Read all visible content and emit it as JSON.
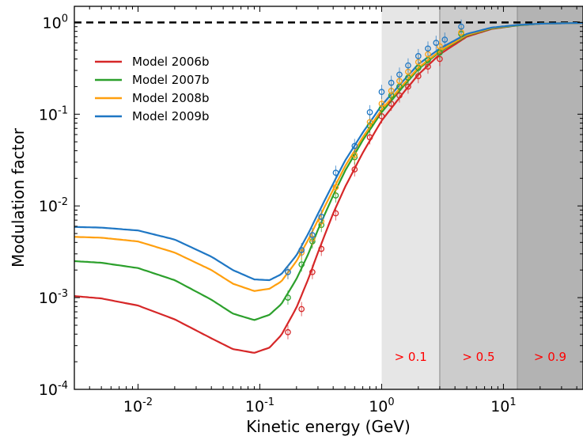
{
  "chart_data": {
    "type": "line",
    "xlabel": "Kinetic energy (GeV)",
    "ylabel": "Modulation factor",
    "xscale": "log",
    "yscale": "log",
    "xlim": [
      0.003,
      45
    ],
    "ylim": [
      0.0001,
      1.5
    ],
    "x_ticks": [
      {
        "value": 0.01,
        "base": "10",
        "exp": "-2"
      },
      {
        "value": 0.1,
        "base": "10",
        "exp": "-1"
      },
      {
        "value": 1,
        "base": "10",
        "exp": "0"
      },
      {
        "value": 10,
        "base": "10",
        "exp": "1"
      }
    ],
    "y_ticks": [
      {
        "value": 0.0001,
        "base": "10",
        "exp": "-4"
      },
      {
        "value": 0.001,
        "base": "10",
        "exp": "-3"
      },
      {
        "value": 0.01,
        "base": "10",
        "exp": "-2"
      },
      {
        "value": 0.1,
        "base": "10",
        "exp": "-1"
      },
      {
        "value": 1,
        "base": "10",
        "exp": "0"
      }
    ],
    "reference_line": {
      "y": 1,
      "style": "dashed",
      "color": "#000000"
    },
    "shaded_regions": [
      {
        "x0": 1.0,
        "x1": 3.0,
        "label": "> 0.1",
        "color": "#e6e6e6"
      },
      {
        "x0": 3.0,
        "x1": 13.0,
        "label": "> 0.5",
        "color": "#cccccc"
      },
      {
        "x0": 13.0,
        "x1": 45,
        "label": "> 0.9",
        "color": "#b3b3b3"
      }
    ],
    "legend_position": "upper-left",
    "grid": false,
    "series": [
      {
        "name": "Model 2006b",
        "color": "#d62728",
        "curve": [
          [
            0.003,
            0.00104
          ],
          [
            0.005,
            0.00098
          ],
          [
            0.01,
            0.00082
          ],
          [
            0.02,
            0.00058
          ],
          [
            0.04,
            0.00036
          ],
          [
            0.06,
            0.000275
          ],
          [
            0.09,
            0.00025
          ],
          [
            0.12,
            0.000285
          ],
          [
            0.15,
            0.00039
          ],
          [
            0.2,
            0.00078
          ],
          [
            0.25,
            0.0016
          ],
          [
            0.3,
            0.0031
          ],
          [
            0.4,
            0.0083
          ],
          [
            0.5,
            0.016
          ],
          [
            0.7,
            0.038
          ],
          [
            1.0,
            0.085
          ],
          [
            1.5,
            0.17
          ],
          [
            2.0,
            0.27
          ],
          [
            3.0,
            0.45
          ],
          [
            5.0,
            0.7
          ],
          [
            8.0,
            0.85
          ],
          [
            13,
            0.93
          ],
          [
            20,
            0.97
          ],
          [
            45,
            0.99
          ]
        ],
        "points": [
          [
            0.17,
            0.00042
          ],
          [
            0.22,
            0.00075
          ],
          [
            0.27,
            0.0019
          ],
          [
            0.32,
            0.0034
          ],
          [
            0.42,
            0.0083
          ],
          [
            0.6,
            0.025
          ],
          [
            0.8,
            0.056
          ],
          [
            1.0,
            0.095
          ],
          [
            1.2,
            0.13
          ],
          [
            1.4,
            0.16
          ],
          [
            1.65,
            0.2
          ],
          [
            2.0,
            0.26
          ],
          [
            2.4,
            0.33
          ],
          [
            3.0,
            0.4
          ]
        ]
      },
      {
        "name": "Model 2007b",
        "color": "#2ca02c",
        "curve": [
          [
            0.003,
            0.0025
          ],
          [
            0.005,
            0.0024
          ],
          [
            0.01,
            0.0021
          ],
          [
            0.02,
            0.00155
          ],
          [
            0.04,
            0.00095
          ],
          [
            0.06,
            0.00067
          ],
          [
            0.09,
            0.00057
          ],
          [
            0.12,
            0.00065
          ],
          [
            0.15,
            0.00085
          ],
          [
            0.2,
            0.0016
          ],
          [
            0.25,
            0.003
          ],
          [
            0.3,
            0.0055
          ],
          [
            0.4,
            0.013
          ],
          [
            0.5,
            0.024
          ],
          [
            0.7,
            0.052
          ],
          [
            1.0,
            0.105
          ],
          [
            1.5,
            0.2
          ],
          [
            2.0,
            0.31
          ],
          [
            3.0,
            0.48
          ],
          [
            5.0,
            0.72
          ],
          [
            8.0,
            0.86
          ],
          [
            13,
            0.93
          ],
          [
            20,
            0.97
          ],
          [
            45,
            0.99
          ]
        ],
        "points": [
          [
            0.17,
            0.001
          ],
          [
            0.22,
            0.0023
          ],
          [
            0.27,
            0.0041
          ],
          [
            0.32,
            0.0062
          ],
          [
            0.42,
            0.013
          ],
          [
            0.6,
            0.034
          ],
          [
            0.8,
            0.075
          ],
          [
            1.0,
            0.115
          ],
          [
            1.2,
            0.16
          ],
          [
            1.4,
            0.2
          ],
          [
            1.65,
            0.25
          ],
          [
            2.0,
            0.32
          ],
          [
            2.4,
            0.39
          ],
          [
            3.0,
            0.47
          ],
          [
            4.5,
            0.75
          ]
        ]
      },
      {
        "name": "Model 2008b",
        "color": "#ff9f0e",
        "curve": [
          [
            0.003,
            0.0046
          ],
          [
            0.005,
            0.0045
          ],
          [
            0.01,
            0.0041
          ],
          [
            0.02,
            0.0031
          ],
          [
            0.04,
            0.002
          ],
          [
            0.06,
            0.00142
          ],
          [
            0.09,
            0.00118
          ],
          [
            0.12,
            0.00125
          ],
          [
            0.15,
            0.0015
          ],
          [
            0.2,
            0.0025
          ],
          [
            0.25,
            0.0043
          ],
          [
            0.3,
            0.007
          ],
          [
            0.4,
            0.015
          ],
          [
            0.5,
            0.027
          ],
          [
            0.7,
            0.056
          ],
          [
            1.0,
            0.112
          ],
          [
            1.5,
            0.21
          ],
          [
            2.0,
            0.32
          ],
          [
            3.0,
            0.49
          ],
          [
            5.0,
            0.73
          ],
          [
            8.0,
            0.87
          ],
          [
            13,
            0.94
          ],
          [
            20,
            0.97
          ],
          [
            45,
            0.99
          ]
        ],
        "points": [
          [
            0.17,
            0.0019
          ],
          [
            0.22,
            0.0031
          ],
          [
            0.27,
            0.0044
          ],
          [
            0.32,
            0.0068
          ],
          [
            0.42,
            0.016
          ],
          [
            0.6,
            0.036
          ],
          [
            0.8,
            0.082
          ],
          [
            1.0,
            0.13
          ],
          [
            1.2,
            0.18
          ],
          [
            1.4,
            0.23
          ],
          [
            1.65,
            0.29
          ],
          [
            2.0,
            0.37
          ],
          [
            2.4,
            0.45
          ],
          [
            3.0,
            0.55
          ],
          [
            4.5,
            0.78
          ]
        ]
      },
      {
        "name": "Model 2009b",
        "color": "#1f77c4",
        "curve": [
          [
            0.003,
            0.0059
          ],
          [
            0.005,
            0.0058
          ],
          [
            0.01,
            0.0054
          ],
          [
            0.02,
            0.0043
          ],
          [
            0.04,
            0.0028
          ],
          [
            0.06,
            0.002
          ],
          [
            0.09,
            0.00158
          ],
          [
            0.12,
            0.00155
          ],
          [
            0.15,
            0.0018
          ],
          [
            0.2,
            0.0029
          ],
          [
            0.25,
            0.005
          ],
          [
            0.3,
            0.0082
          ],
          [
            0.4,
            0.0175
          ],
          [
            0.5,
            0.031
          ],
          [
            0.7,
            0.063
          ],
          [
            1.0,
            0.125
          ],
          [
            1.5,
            0.23
          ],
          [
            2.0,
            0.35
          ],
          [
            3.0,
            0.52
          ],
          [
            5.0,
            0.75
          ],
          [
            8.0,
            0.88
          ],
          [
            13,
            0.94
          ],
          [
            20,
            0.97
          ],
          [
            45,
            0.99
          ]
        ],
        "points": [
          [
            0.17,
            0.0019
          ],
          [
            0.22,
            0.0033
          ],
          [
            0.27,
            0.0048
          ],
          [
            0.32,
            0.0076
          ],
          [
            0.42,
            0.023
          ],
          [
            0.6,
            0.045
          ],
          [
            0.8,
            0.105
          ],
          [
            1.0,
            0.175
          ],
          [
            1.2,
            0.22
          ],
          [
            1.4,
            0.27
          ],
          [
            1.65,
            0.34
          ],
          [
            2.0,
            0.43
          ],
          [
            2.4,
            0.52
          ],
          [
            2.8,
            0.6
          ],
          [
            3.3,
            0.65
          ],
          [
            4.5,
            0.9
          ]
        ]
      }
    ]
  }
}
